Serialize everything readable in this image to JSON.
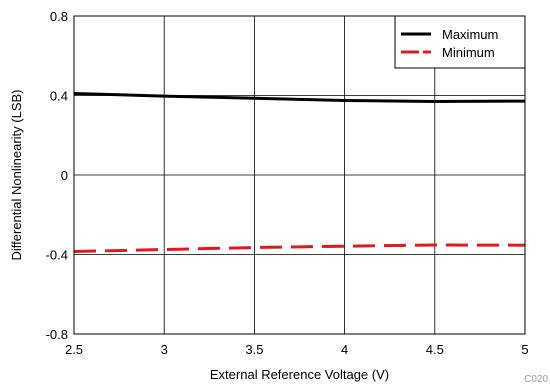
{
  "chart_data": {
    "type": "line",
    "xlabel": "External Reference Voltage (V)",
    "ylabel": "Differential Nonlinearity (LSB)",
    "xlim": [
      2.5,
      5
    ],
    "ylim": [
      -0.8,
      0.8
    ],
    "x_ticks": [
      "2.5",
      "3",
      "3.5",
      "4",
      "4.5",
      "5"
    ],
    "y_ticks": [
      "0.8",
      "0.4",
      "0",
      "-0.4",
      "-0.8"
    ],
    "grid": true,
    "legend_position": "top-right",
    "series": [
      {
        "name": "Maximum",
        "color": "#000000",
        "dash": "solid",
        "x": [
          2.5,
          3.0,
          3.5,
          4.0,
          4.5,
          5.0
        ],
        "y": [
          0.41,
          0.397,
          0.386,
          0.375,
          0.37,
          0.372
        ]
      },
      {
        "name": "Minimum",
        "color": "#e31a1c",
        "dash": "dashed",
        "x": [
          2.5,
          3.0,
          3.5,
          4.0,
          4.5,
          5.0
        ],
        "y": [
          -0.385,
          -0.375,
          -0.365,
          -0.358,
          -0.352,
          -0.353
        ]
      }
    ]
  },
  "footer_code": "C020"
}
